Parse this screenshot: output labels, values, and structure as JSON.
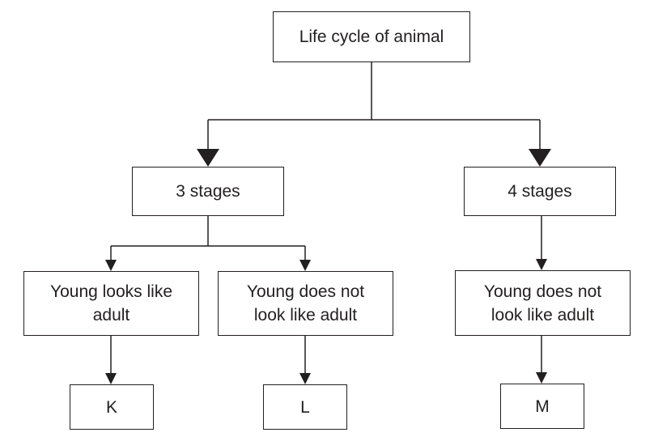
{
  "diagram": {
    "root": {
      "label": "Life cycle of animal"
    },
    "branches": [
      {
        "label": "3 stages"
      },
      {
        "label": "4 stages"
      }
    ],
    "descriptions": [
      {
        "label": "Young looks like adult"
      },
      {
        "label": "Young does not look like adult"
      },
      {
        "label": "Young does not look like adult"
      }
    ],
    "leaves": [
      {
        "label": "K"
      },
      {
        "label": "L"
      },
      {
        "label": "M"
      }
    ]
  }
}
